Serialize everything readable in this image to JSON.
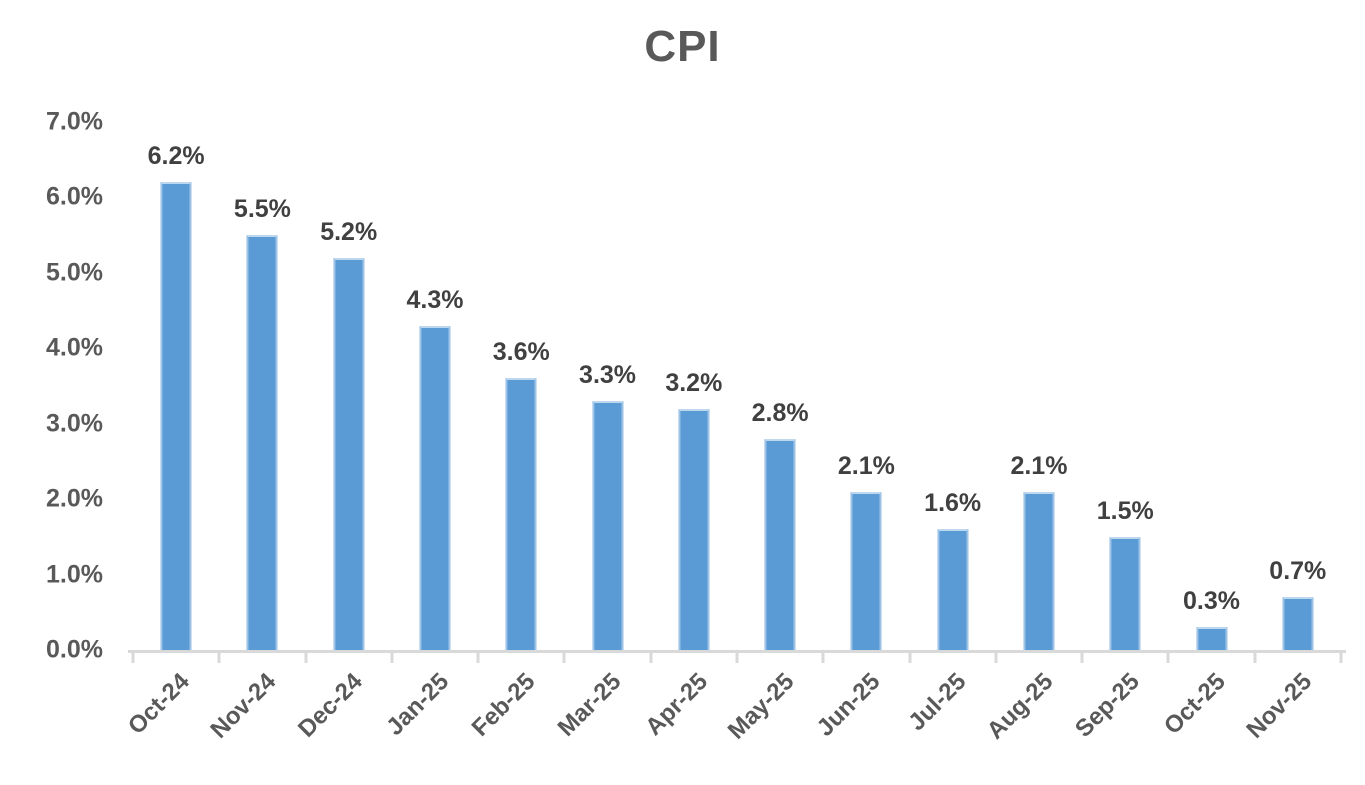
{
  "chart_data": {
    "type": "bar",
    "title": "CPI",
    "categories": [
      "Oct-24",
      "Nov-24",
      "Dec-24",
      "Jan-25",
      "Feb-25",
      "Mar-25",
      "Apr-25",
      "May-25",
      "Jun-25",
      "Jul-25",
      "Aug-25",
      "Sep-25",
      "Oct-25",
      "Nov-25"
    ],
    "values": [
      6.2,
      5.5,
      5.2,
      4.3,
      3.6,
      3.3,
      3.2,
      2.8,
      2.1,
      1.6,
      2.1,
      1.5,
      0.3,
      0.7
    ],
    "data_labels": [
      "6.2%",
      "5.5%",
      "5.2%",
      "4.3%",
      "3.6%",
      "3.3%",
      "3.2%",
      "2.8%",
      "2.1%",
      "1.6%",
      "2.1%",
      "1.5%",
      "0.3%",
      "0.7%"
    ],
    "xlabel": "",
    "ylabel": "",
    "ylim": [
      0,
      7
    ],
    "ytick_labels": [
      "0.0%",
      "1.0%",
      "2.0%",
      "3.0%",
      "4.0%",
      "5.0%",
      "6.0%",
      "7.0%"
    ],
    "grid": false,
    "legend_position": "none",
    "bar_color": "#5b9bd5",
    "bar_edge_color": "#9dc3e6",
    "axis_color": "#d9d9d9",
    "title_color": "#595959",
    "tick_label_color": "#595959",
    "data_label_color": "#404040"
  }
}
